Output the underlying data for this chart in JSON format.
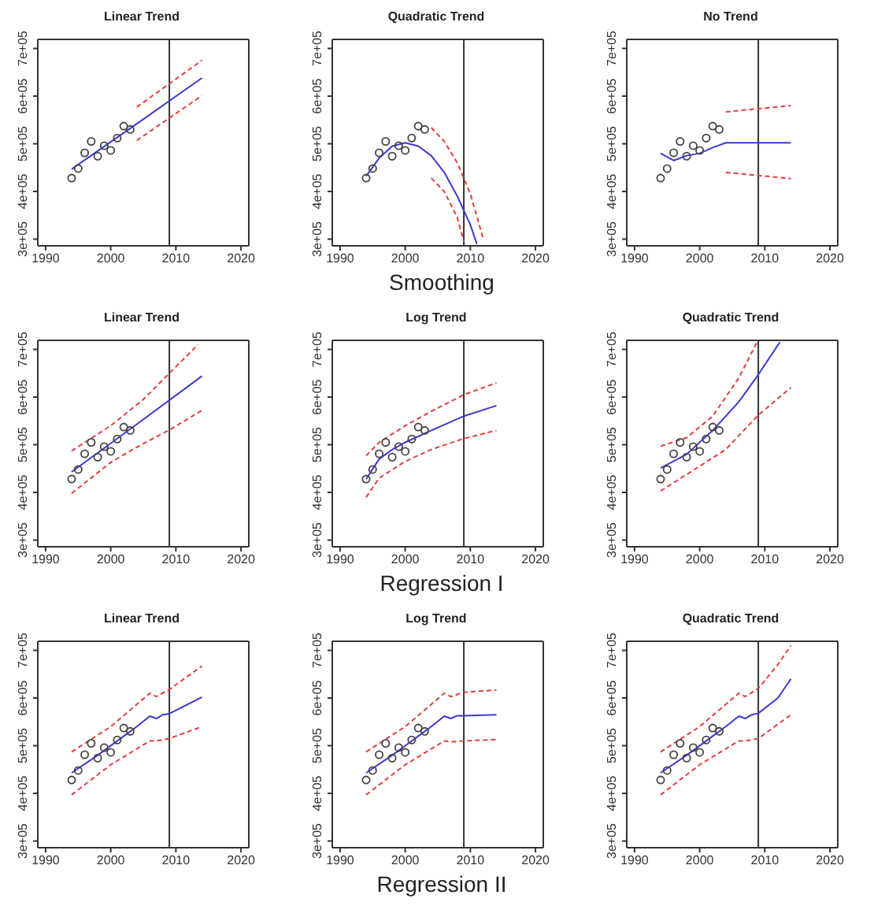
{
  "chart_data": [
    {
      "type": "line",
      "title": "Linear Trend",
      "xlim": [
        1988.8,
        2021.2
      ],
      "ylim": [
        286000,
        719000
      ],
      "xticks": [
        1990,
        2000,
        2010,
        2020
      ],
      "yticks": [
        {
          "value": 300000,
          "label": "3e+05"
        },
        {
          "value": 400000,
          "label": "4e+05"
        },
        {
          "value": 500000,
          "label": "5e+05"
        },
        {
          "value": 600000,
          "label": "6e+05"
        },
        {
          "value": 700000,
          "label": "7e+05"
        }
      ],
      "ref_lines": [
        {
          "axis": "x",
          "value": 2009,
          "color": "#333333"
        }
      ],
      "series": [
        {
          "type": "scatter",
          "marker": "circle",
          "color": "#444444",
          "x": [
            1994,
            1995,
            1996,
            1997,
            1998,
            1999,
            2000,
            2001,
            2002,
            2003
          ],
          "values": [
            428000,
            448000,
            481000,
            505000,
            474000,
            496000,
            486000,
            512000,
            537000,
            530000
          ]
        },
        {
          "type": "line",
          "color": "#3a3ad0",
          "line_style": "solid",
          "x": [
            1994,
            2004,
            2014
          ],
          "values": [
            447000,
            542000,
            638000
          ]
        },
        {
          "type": "line",
          "color": "#e04040",
          "line_style": "dashed",
          "x": [
            2004,
            2014
          ],
          "values": [
            577000,
            675000
          ]
        },
        {
          "type": "line",
          "color": "#e04040",
          "line_style": "dashed",
          "x": [
            2004,
            2014
          ],
          "values": [
            507000,
            601000
          ]
        }
      ]
    },
    {
      "type": "line",
      "title": "Quadratic Trend",
      "xlabel": "Smoothing",
      "xlim": [
        1988.8,
        2021.2
      ],
      "ylim": [
        286000,
        719000
      ],
      "xticks": [
        1990,
        2000,
        2010,
        2020
      ],
      "yticks": [
        {
          "value": 300000,
          "label": "3e+05"
        },
        {
          "value": 400000,
          "label": "4e+05"
        },
        {
          "value": 500000,
          "label": "5e+05"
        },
        {
          "value": 600000,
          "label": "6e+05"
        },
        {
          "value": 700000,
          "label": "7e+05"
        }
      ],
      "ref_lines": [
        {
          "axis": "x",
          "value": 2009,
          "color": "#333333"
        }
      ],
      "series": [
        {
          "type": "scatter",
          "marker": "circle",
          "color": "#444444",
          "x": [
            1994,
            1995,
            1996,
            1997,
            1998,
            1999,
            2000,
            2001,
            2002,
            2003
          ],
          "values": [
            428000,
            448000,
            481000,
            505000,
            474000,
            496000,
            486000,
            512000,
            537000,
            530000
          ]
        },
        {
          "type": "line",
          "color": "#3a3ad0",
          "line_style": "solid",
          "x": [
            1994,
            1996,
            1998,
            2000,
            2002,
            2004,
            2006,
            2008,
            2010,
            2011
          ],
          "values": [
            432000,
            470000,
            495000,
            502000,
            495000,
            475000,
            440000,
            390000,
            330000,
            290000
          ]
        },
        {
          "type": "line",
          "color": "#e04040",
          "line_style": "dashed",
          "x": [
            2004,
            2006,
            2008,
            2010,
            2012
          ],
          "values": [
            534000,
            505000,
            460000,
            395000,
            300000
          ]
        },
        {
          "type": "line",
          "color": "#e04040",
          "line_style": "dashed",
          "x": [
            2004,
            2006,
            2008,
            2009
          ],
          "values": [
            428000,
            400000,
            345000,
            295000
          ]
        }
      ]
    },
    {
      "type": "line",
      "title": "No Trend",
      "xlim": [
        1988.8,
        2021.2
      ],
      "ylim": [
        286000,
        719000
      ],
      "xticks": [
        1990,
        2000,
        2010,
        2020
      ],
      "yticks": [
        {
          "value": 300000,
          "label": "3e+05"
        },
        {
          "value": 400000,
          "label": "4e+05"
        },
        {
          "value": 500000,
          "label": "5e+05"
        },
        {
          "value": 600000,
          "label": "6e+05"
        },
        {
          "value": 700000,
          "label": "7e+05"
        }
      ],
      "ref_lines": [
        {
          "axis": "x",
          "value": 2009,
          "color": "#333333"
        }
      ],
      "series": [
        {
          "type": "scatter",
          "marker": "circle",
          "color": "#444444",
          "x": [
            1994,
            1995,
            1996,
            1997,
            1998,
            1999,
            2000,
            2001,
            2002,
            2003
          ],
          "values": [
            428000,
            448000,
            481000,
            505000,
            474000,
            496000,
            486000,
            512000,
            537000,
            530000
          ]
        },
        {
          "type": "line",
          "color": "#3a3ad0",
          "line_style": "solid",
          "x": [
            1994,
            1996,
            1998,
            2000,
            2002,
            2004,
            2014
          ],
          "values": [
            480000,
            465000,
            475000,
            480000,
            492000,
            502000,
            502000
          ]
        },
        {
          "type": "line",
          "color": "#e04040",
          "line_style": "dashed",
          "x": [
            2004,
            2014
          ],
          "values": [
            567000,
            580000
          ]
        },
        {
          "type": "line",
          "color": "#e04040",
          "line_style": "dashed",
          "x": [
            2004,
            2014
          ],
          "values": [
            440000,
            427000
          ]
        }
      ]
    },
    {
      "type": "line",
      "title": "Linear Trend",
      "xlim": [
        1988.8,
        2021.2
      ],
      "ylim": [
        286000,
        719000
      ],
      "xticks": [
        1990,
        2000,
        2010,
        2020
      ],
      "yticks": [
        {
          "value": 300000,
          "label": "3e+05"
        },
        {
          "value": 400000,
          "label": "4e+05"
        },
        {
          "value": 500000,
          "label": "5e+05"
        },
        {
          "value": 600000,
          "label": "6e+05"
        },
        {
          "value": 700000,
          "label": "7e+05"
        }
      ],
      "ref_lines": [
        {
          "axis": "x",
          "value": 2009,
          "color": "#333333"
        }
      ],
      "series": [
        {
          "type": "scatter",
          "marker": "circle",
          "color": "#444444",
          "x": [
            1994,
            1995,
            1996,
            1997,
            1998,
            1999,
            2000,
            2001,
            2002,
            2003
          ],
          "values": [
            428000,
            448000,
            481000,
            505000,
            474000,
            496000,
            486000,
            512000,
            537000,
            530000
          ]
        },
        {
          "type": "line",
          "color": "#3a3ad0",
          "line_style": "solid",
          "x": [
            1994,
            2004,
            2014
          ],
          "values": [
            443000,
            543000,
            644000
          ]
        },
        {
          "type": "line",
          "color": "#e04040",
          "line_style": "dashed",
          "x": [
            1994,
            2000,
            2005,
            2009,
            2013.4
          ],
          "values": [
            487000,
            540000,
            595000,
            650000,
            710000
          ]
        },
        {
          "type": "line",
          "color": "#e04040",
          "line_style": "dashed",
          "x": [
            1994,
            2000,
            2004,
            2009,
            2014
          ],
          "values": [
            398000,
            463000,
            495000,
            531000,
            572000
          ]
        }
      ]
    },
    {
      "type": "line",
      "title": "Log Trend",
      "xlabel": "Regression I",
      "xlim": [
        1988.8,
        2021.2
      ],
      "ylim": [
        286000,
        719000
      ],
      "xticks": [
        1990,
        2000,
        2010,
        2020
      ],
      "yticks": [
        {
          "value": 300000,
          "label": "3e+05"
        },
        {
          "value": 400000,
          "label": "4e+05"
        },
        {
          "value": 500000,
          "label": "5e+05"
        },
        {
          "value": 600000,
          "label": "6e+05"
        },
        {
          "value": 700000,
          "label": "7e+05"
        }
      ],
      "ref_lines": [
        {
          "axis": "x",
          "value": 2009,
          "color": "#333333"
        }
      ],
      "series": [
        {
          "type": "scatter",
          "marker": "circle",
          "color": "#444444",
          "x": [
            1994,
            1995,
            1996,
            1997,
            1998,
            1999,
            2000,
            2001,
            2002,
            2003
          ],
          "values": [
            428000,
            448000,
            481000,
            505000,
            474000,
            496000,
            486000,
            512000,
            537000,
            530000
          ]
        },
        {
          "type": "line",
          "color": "#3a3ad0",
          "line_style": "solid",
          "x": [
            1994,
            1996,
            1998,
            2000,
            2004,
            2009,
            2014
          ],
          "values": [
            428000,
            470000,
            490000,
            505000,
            530000,
            560000,
            582000
          ]
        },
        {
          "type": "line",
          "color": "#e04040",
          "line_style": "dashed",
          "x": [
            1994,
            1996,
            2000,
            2004,
            2009,
            2014
          ],
          "values": [
            477000,
            505000,
            540000,
            570000,
            605000,
            630000
          ]
        },
        {
          "type": "line",
          "color": "#e04040",
          "line_style": "dashed",
          "x": [
            1994,
            1996,
            2000,
            2004,
            2009,
            2014
          ],
          "values": [
            390000,
            430000,
            465000,
            490000,
            513000,
            530000
          ]
        }
      ]
    },
    {
      "type": "line",
      "title": "Quadratic Trend",
      "xlim": [
        1988.8,
        2021.2
      ],
      "ylim": [
        286000,
        719000
      ],
      "xticks": [
        1990,
        2000,
        2010,
        2020
      ],
      "yticks": [
        {
          "value": 300000,
          "label": "3e+05"
        },
        {
          "value": 400000,
          "label": "4e+05"
        },
        {
          "value": 500000,
          "label": "5e+05"
        },
        {
          "value": 600000,
          "label": "6e+05"
        },
        {
          "value": 700000,
          "label": "7e+05"
        }
      ],
      "ref_lines": [
        {
          "axis": "x",
          "value": 2009,
          "color": "#333333"
        }
      ],
      "series": [
        {
          "type": "scatter",
          "marker": "circle",
          "color": "#444444",
          "x": [
            1994,
            1995,
            1996,
            1997,
            1998,
            1999,
            2000,
            2001,
            2002,
            2003
          ],
          "values": [
            428000,
            448000,
            481000,
            505000,
            474000,
            496000,
            486000,
            512000,
            537000,
            530000
          ]
        },
        {
          "type": "line",
          "color": "#3a3ad0",
          "line_style": "solid",
          "x": [
            1994,
            1998,
            2002,
            2006,
            2009,
            2012.3
          ],
          "values": [
            451000,
            480000,
            530000,
            590000,
            647000,
            715000
          ]
        },
        {
          "type": "line",
          "color": "#e04040",
          "line_style": "dashed",
          "x": [
            1994,
            1998,
            2002,
            2006,
            2008.8
          ],
          "values": [
            497000,
            515000,
            560000,
            640000,
            715000
          ]
        },
        {
          "type": "line",
          "color": "#e04040",
          "line_style": "dashed",
          "x": [
            1994,
            2000,
            2004,
            2009,
            2014
          ],
          "values": [
            403000,
            455000,
            490000,
            562000,
            620000
          ]
        }
      ]
    },
    {
      "type": "line",
      "title": "Linear Trend",
      "xlim": [
        1988.8,
        2021.2
      ],
      "ylim": [
        286000,
        719000
      ],
      "xticks": [
        1990,
        2000,
        2010,
        2020
      ],
      "yticks": [
        {
          "value": 300000,
          "label": "3e+05"
        },
        {
          "value": 400000,
          "label": "4e+05"
        },
        {
          "value": 500000,
          "label": "5e+05"
        },
        {
          "value": 600000,
          "label": "6e+05"
        },
        {
          "value": 700000,
          "label": "7e+05"
        }
      ],
      "ref_lines": [
        {
          "axis": "x",
          "value": 2009,
          "color": "#333333"
        }
      ],
      "series": [
        {
          "type": "scatter",
          "marker": "circle",
          "color": "#444444",
          "x": [
            1994,
            1995,
            1996,
            1997,
            1998,
            1999,
            2000,
            2001,
            2002,
            2003
          ],
          "values": [
            428000,
            448000,
            481000,
            505000,
            474000,
            496000,
            486000,
            512000,
            537000,
            530000
          ]
        },
        {
          "type": "line",
          "color": "#3a3ad0",
          "line_style": "solid",
          "x": [
            1994,
            1998,
            2002,
            2004,
            2006,
            2007,
            2008,
            2009,
            2014
          ],
          "values": [
            443000,
            480000,
            520000,
            540000,
            562000,
            557000,
            565000,
            567000,
            602000
          ]
        },
        {
          "type": "line",
          "color": "#e04040",
          "line_style": "dashed",
          "x": [
            1994,
            2000,
            2006,
            2007,
            2009,
            2014
          ],
          "values": [
            487000,
            540000,
            610000,
            603000,
            618000,
            667000
          ]
        },
        {
          "type": "line",
          "color": "#e04040",
          "line_style": "dashed",
          "x": [
            1994,
            2000,
            2006,
            2007,
            2009,
            2014
          ],
          "values": [
            397000,
            460000,
            510000,
            510000,
            515000,
            540000
          ]
        }
      ]
    },
    {
      "type": "line",
      "title": "Log Trend",
      "xlabel": "Regression II",
      "xlim": [
        1988.8,
        2021.2
      ],
      "ylim": [
        286000,
        719000
      ],
      "xticks": [
        1990,
        2000,
        2010,
        2020
      ],
      "yticks": [
        {
          "value": 300000,
          "label": "3e+05"
        },
        {
          "value": 400000,
          "label": "4e+05"
        },
        {
          "value": 500000,
          "label": "5e+05"
        },
        {
          "value": 600000,
          "label": "6e+05"
        },
        {
          "value": 700000,
          "label": "7e+05"
        }
      ],
      "ref_lines": [
        {
          "axis": "x",
          "value": 2009,
          "color": "#333333"
        }
      ],
      "series": [
        {
          "type": "scatter",
          "marker": "circle",
          "color": "#444444",
          "x": [
            1994,
            1995,
            1996,
            1997,
            1998,
            1999,
            2000,
            2001,
            2002,
            2003
          ],
          "values": [
            428000,
            448000,
            481000,
            505000,
            474000,
            496000,
            486000,
            512000,
            537000,
            530000
          ]
        },
        {
          "type": "line",
          "color": "#3a3ad0",
          "line_style": "solid",
          "x": [
            1994,
            1998,
            2002,
            2004,
            2006,
            2007,
            2008,
            2009,
            2014
          ],
          "values": [
            443000,
            480000,
            520000,
            540000,
            562000,
            557000,
            563000,
            563000,
            565000
          ]
        },
        {
          "type": "line",
          "color": "#e04040",
          "line_style": "dashed",
          "x": [
            1994,
            2000,
            2006,
            2007,
            2009,
            2014
          ],
          "values": [
            487000,
            540000,
            610000,
            603000,
            612000,
            617000
          ]
        },
        {
          "type": "line",
          "color": "#e04040",
          "line_style": "dashed",
          "x": [
            1994,
            2000,
            2006,
            2007,
            2009,
            2014
          ],
          "values": [
            397000,
            460000,
            510000,
            508000,
            510000,
            513000
          ]
        }
      ]
    },
    {
      "type": "line",
      "title": "Quadratic Trend",
      "xlim": [
        1988.8,
        2021.2
      ],
      "ylim": [
        286000,
        719000
      ],
      "xticks": [
        1990,
        2000,
        2010,
        2020
      ],
      "yticks": [
        {
          "value": 300000,
          "label": "3e+05"
        },
        {
          "value": 400000,
          "label": "4e+05"
        },
        {
          "value": 500000,
          "label": "5e+05"
        },
        {
          "value": 600000,
          "label": "6e+05"
        },
        {
          "value": 700000,
          "label": "7e+05"
        }
      ],
      "ref_lines": [
        {
          "axis": "x",
          "value": 2009,
          "color": "#333333"
        }
      ],
      "series": [
        {
          "type": "scatter",
          "marker": "circle",
          "color": "#444444",
          "x": [
            1994,
            1995,
            1996,
            1997,
            1998,
            1999,
            2000,
            2001,
            2002,
            2003
          ],
          "values": [
            428000,
            448000,
            481000,
            505000,
            474000,
            496000,
            486000,
            512000,
            537000,
            530000
          ]
        },
        {
          "type": "line",
          "color": "#3a3ad0",
          "line_style": "solid",
          "x": [
            1994,
            1998,
            2002,
            2004,
            2006,
            2007,
            2008,
            2009,
            2012,
            2014
          ],
          "values": [
            443000,
            480000,
            520000,
            540000,
            562000,
            557000,
            565000,
            568000,
            600000,
            640000
          ]
        },
        {
          "type": "line",
          "color": "#e04040",
          "line_style": "dashed",
          "x": [
            1994,
            2000,
            2006,
            2007,
            2009,
            2012,
            2014
          ],
          "values": [
            487000,
            540000,
            610000,
            603000,
            620000,
            670000,
            710000
          ]
        },
        {
          "type": "line",
          "color": "#e04040",
          "line_style": "dashed",
          "x": [
            1994,
            2000,
            2006,
            2007,
            2009,
            2014
          ],
          "values": [
            397000,
            460000,
            510000,
            510000,
            515000,
            565000
          ]
        }
      ]
    }
  ]
}
